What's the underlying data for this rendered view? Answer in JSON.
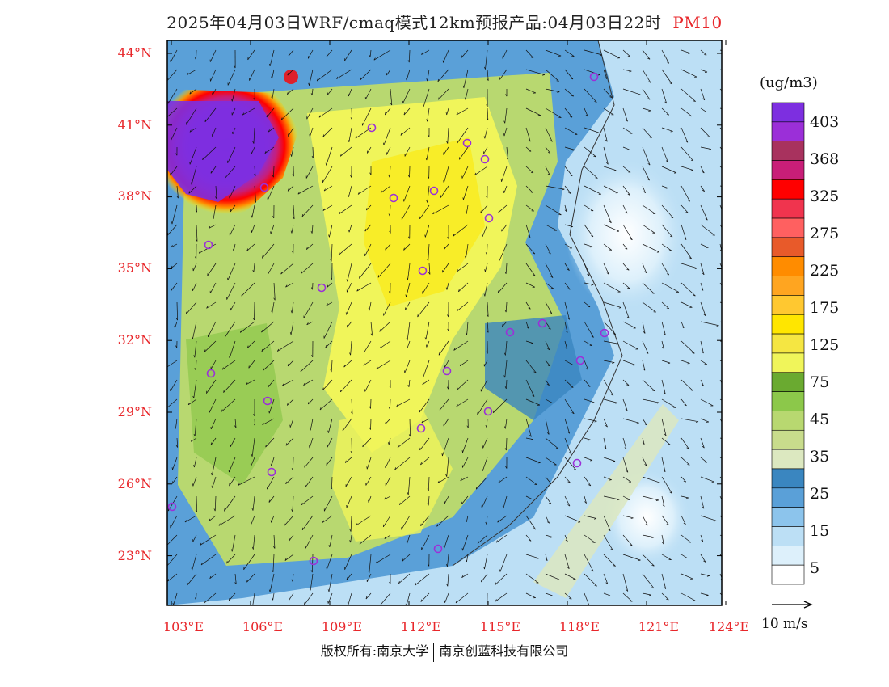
{
  "header": {
    "title": "2025年04月03日WRF/cmaq模式12km预报产品:04月03日22时",
    "variable": "PM10"
  },
  "lat_labels": [
    "44°N",
    "41°N",
    "38°N",
    "35°N",
    "32°N",
    "29°N",
    "26°N",
    "23°N"
  ],
  "lon_labels": [
    "103°E",
    "106°E",
    "109°E",
    "112°E",
    "115°E",
    "118°E",
    "121°E",
    "124°E"
  ],
  "colorbar": {
    "unit": "(ug/m3)",
    "ticks": [
      "403",
      "368",
      "325",
      "275",
      "225",
      "175",
      "125",
      "75",
      "45",
      "35",
      "25",
      "15",
      "5"
    ],
    "colors": [
      "#7d2fe0",
      "#9b2fd8",
      "#a8325e",
      "#c81e78",
      "#ff0000",
      "#f0344e",
      "#ff6060",
      "#e85a2a",
      "#ff8c00",
      "#ffa520",
      "#ffc830",
      "#ffe600",
      "#f5e642",
      "#f0f55a",
      "#6aaa30",
      "#8cc84a",
      "#b8d870",
      "#c8dc8c",
      "#dce8c0",
      "#3a86c0",
      "#5aa0d8",
      "#8cc4ec",
      "#bcdff5",
      "#ddf0fb",
      "#ffffff"
    ]
  },
  "wind_reference": {
    "label": "10 m/s"
  },
  "footer": {
    "copyright_left": "版权所有:南京大学",
    "copyright_right": "南京创蓝科技有限公司"
  },
  "map": {
    "lon_range": [
      103,
      124
    ],
    "lat_range": [
      21,
      44.5
    ],
    "hotspot_city_marker_color": "#9b30d8"
  }
}
